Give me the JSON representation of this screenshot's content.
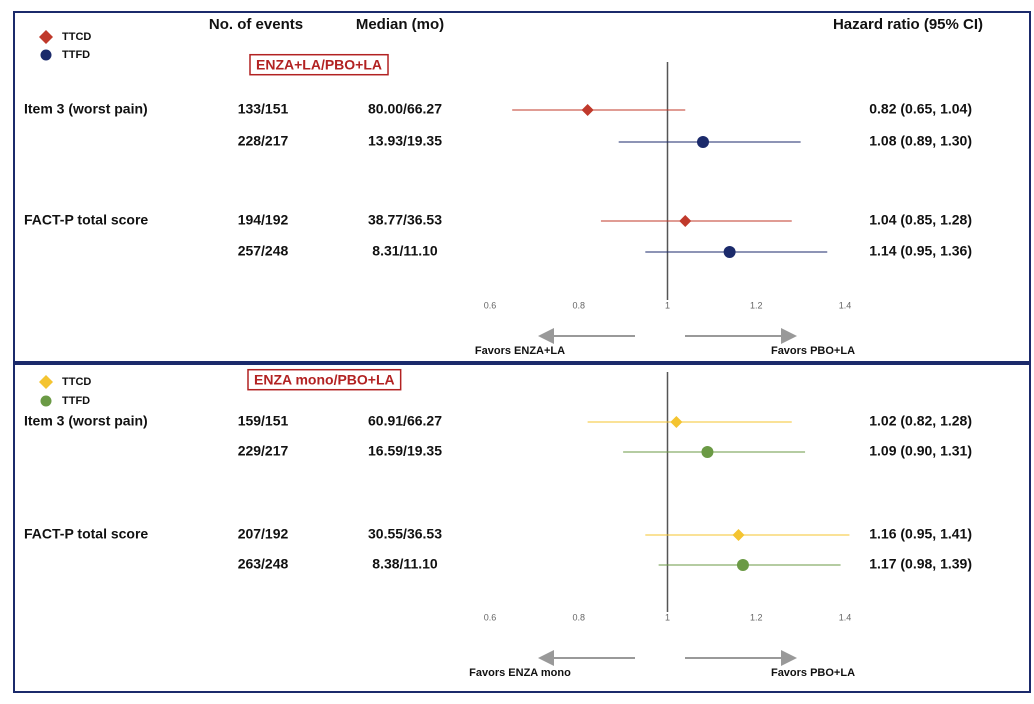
{
  "chart_data": [
    {
      "type": "forest",
      "columns": [
        "No. of events",
        "Median (mo)",
        "Hazard ratio (95% CI)"
      ],
      "comparison": "ENZA+LA/PBO+LA",
      "series": [
        {
          "name": "TTCD",
          "color": "#c0392b",
          "marker": "diamond"
        },
        {
          "name": "TTFD",
          "color": "#1b2a6b",
          "marker": "circle"
        }
      ],
      "rows": [
        {
          "label": "Item 3 (worst pain)",
          "series": 0,
          "events": "133/151",
          "median": "80.00/66.27",
          "hr": 0.82,
          "lo": 0.65,
          "hi": 1.04,
          "hr_label": "0.82 (0.65, 1.04)"
        },
        {
          "label": null,
          "series": 1,
          "events": "228/217",
          "median": "13.93/19.35",
          "hr": 1.08,
          "lo": 0.89,
          "hi": 1.3,
          "hr_label": "1.08 (0.89, 1.30)"
        },
        {
          "label": "FACT-P total score",
          "series": 0,
          "events": "194/192",
          "median": "38.77/36.53",
          "hr": 1.04,
          "lo": 0.85,
          "hi": 1.28,
          "hr_label": "1.04 (0.85, 1.28)"
        },
        {
          "label": null,
          "series": 1,
          "events": "257/248",
          "median": "8.31/11.10",
          "hr": 1.14,
          "lo": 0.95,
          "hi": 1.36,
          "hr_label": "1.14 (0.95, 1.36)"
        }
      ],
      "xlim": [
        0.6,
        1.4
      ],
      "xticks": [
        0.6,
        0.8,
        1,
        1.2,
        1.4
      ],
      "left_label": "Favors ENZA+LA",
      "right_label": "Favors PBO+LA"
    },
    {
      "type": "forest",
      "comparison": "ENZA mono/PBO+LA",
      "series": [
        {
          "name": "TTCD",
          "color": "#f4c430",
          "marker": "diamond"
        },
        {
          "name": "TTFD",
          "color": "#6b9a45",
          "marker": "circle"
        }
      ],
      "rows": [
        {
          "label": "Item 3 (worst pain)",
          "series": 0,
          "events": "159/151",
          "median": "60.91/66.27",
          "hr": 1.02,
          "lo": 0.82,
          "hi": 1.28,
          "hr_label": "1.02 (0.82, 1.28)"
        },
        {
          "label": null,
          "series": 1,
          "events": "229/217",
          "median": "16.59/19.35",
          "hr": 1.09,
          "lo": 0.9,
          "hi": 1.31,
          "hr_label": "1.09 (0.90, 1.31)"
        },
        {
          "label": "FACT-P total score",
          "series": 0,
          "events": "207/192",
          "median": "30.55/36.53",
          "hr": 1.16,
          "lo": 0.95,
          "hi": 1.41,
          "hr_label": "1.16 (0.95, 1.41)"
        },
        {
          "label": null,
          "series": 1,
          "events": "263/248",
          "median": "8.38/11.10",
          "hr": 1.17,
          "lo": 0.98,
          "hi": 1.39,
          "hr_label": "1.17 (0.98, 1.39)"
        }
      ],
      "xlim": [
        0.6,
        1.4
      ],
      "xticks": [
        0.6,
        0.8,
        1,
        1.2,
        1.4
      ],
      "left_label": "Favors ENZA mono",
      "right_label": "Favors PBO+LA"
    }
  ]
}
